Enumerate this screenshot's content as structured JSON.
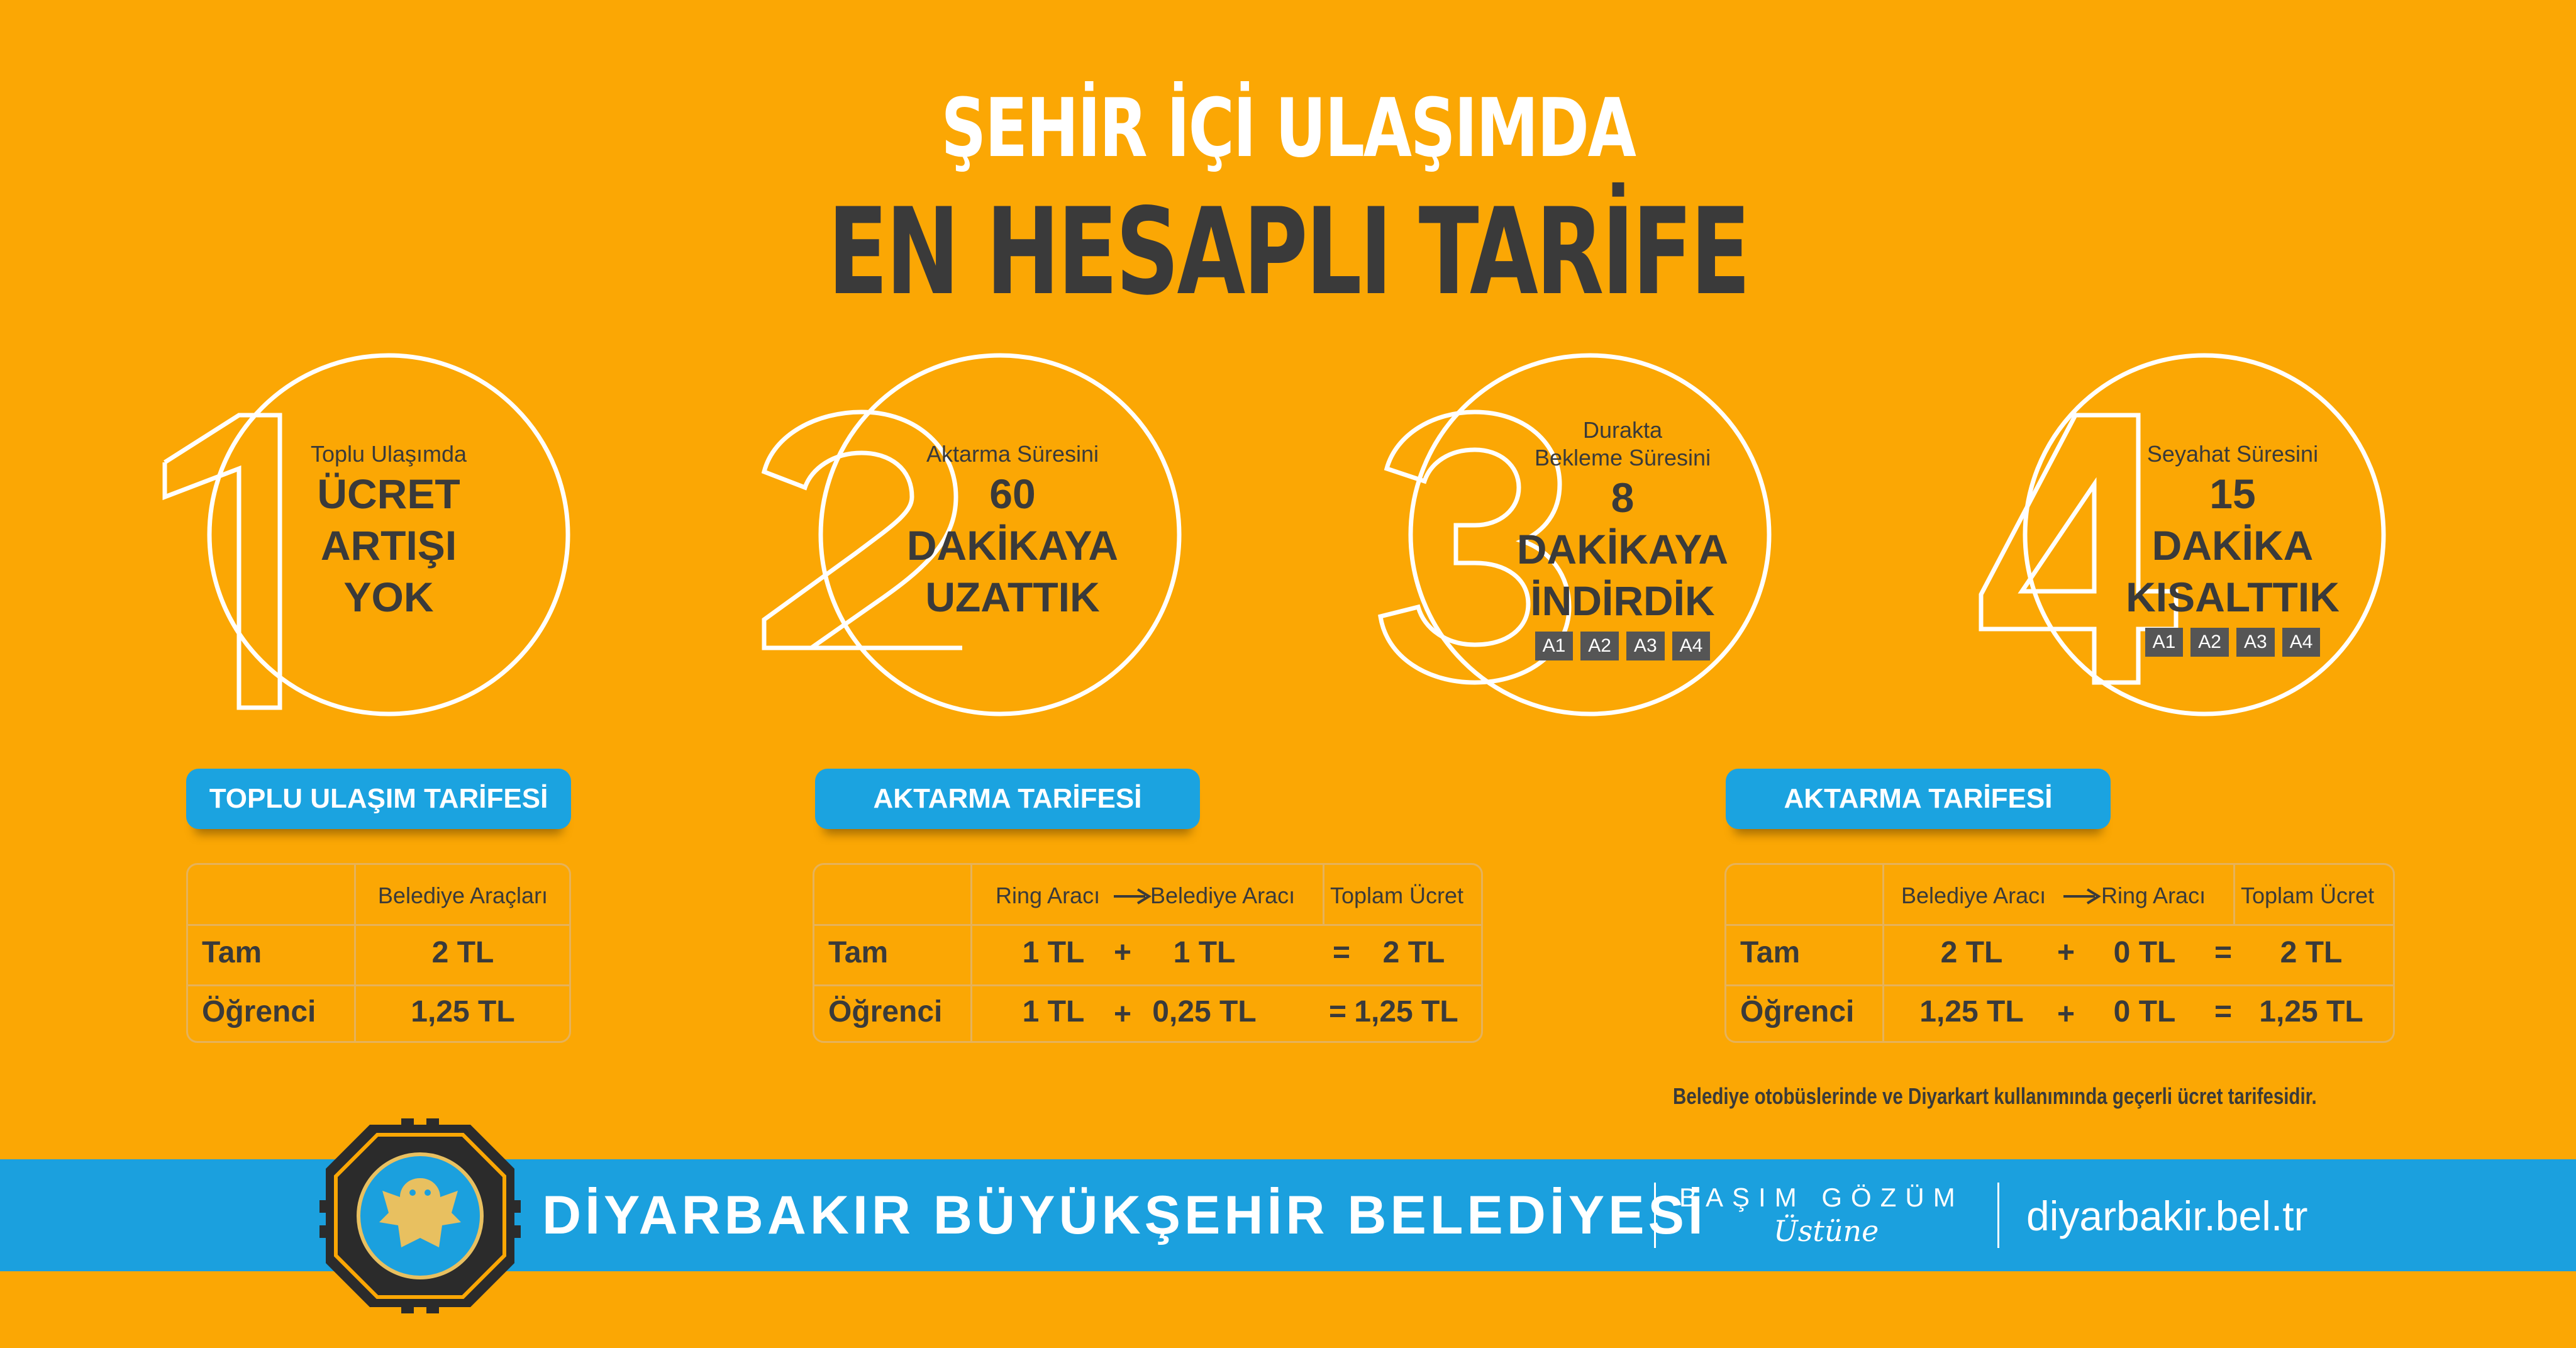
{
  "heading": {
    "line1": "ŞEHİR İÇİ ULAŞIMDA",
    "line2": "EN HESAPLI TARİFE"
  },
  "features": [
    {
      "number": "1",
      "small": "Toplu Ulaşımda",
      "big": [
        "ÜCRET",
        "ARTIŞI",
        "YOK"
      ],
      "badges": []
    },
    {
      "number": "2",
      "small": "Aktarma Süresini",
      "big": [
        "60",
        "DAKİKAYA",
        "UZATTIK"
      ],
      "badges": []
    },
    {
      "number": "3",
      "small": "Durakta\nBekleme Süresini",
      "big": [
        "8",
        "DAKİKAYA",
        "İNDİRDİK"
      ],
      "badges": [
        "A1",
        "A2",
        "A3",
        "A4"
      ]
    },
    {
      "number": "4",
      "small": "Seyahat Süresini",
      "big": [
        "15",
        "DAKİKA",
        "KISALTTIK"
      ],
      "badges": [
        "A1",
        "A2",
        "A3",
        "A4"
      ]
    }
  ],
  "tables": [
    {
      "title": "TOPLU ULAŞIM TARİFESİ",
      "header": "Belediye Araçları",
      "rows": [
        {
          "label": "Tam",
          "value": "2 TL"
        },
        {
          "label": "Öğrenci",
          "value": "1,25 TL"
        }
      ]
    },
    {
      "title": "AKTARMA TARİFESİ",
      "header_from": "Ring Aracı",
      "header_to": "Belediye Aracı",
      "header_total": "Toplam Ücret",
      "rows": [
        {
          "label": "Tam",
          "a": "1 TL",
          "op": "+",
          "b": "1 TL",
          "eq": "=",
          "total": "2 TL"
        },
        {
          "label": "Öğrenci",
          "a": "1 TL",
          "op": "+",
          "b": "0,25 TL",
          "eq": "=",
          "total": "1,25 TL"
        }
      ]
    },
    {
      "title": "AKTARMA TARİFESİ",
      "header_from": "Belediye Aracı",
      "header_to": "Ring Aracı",
      "header_total": "Toplam Ücret",
      "rows": [
        {
          "label": "Tam",
          "a": "2 TL",
          "op": "+",
          "b": "0 TL",
          "eq": "=",
          "total": "2 TL"
        },
        {
          "label": "Öğrenci",
          "a": "1,25 TL",
          "op": "+",
          "b": "0 TL",
          "eq": "=",
          "total": "1,25 TL"
        }
      ]
    }
  ],
  "note": "Belediye otobüslerinde ve Diyarkart kullanımında geçerli ücret tarifesidir.",
  "footer": {
    "organization": "DİYARBAKIR BÜYÜKŞEHİR BELEDİYESİ",
    "slogan_top": "BAŞIM GÖZÜM",
    "slogan_bottom": "Üstüne",
    "website": "diyarbakir.bel.tr"
  },
  "colors": {
    "background": "#fba704",
    "blue": "#1ba3e0",
    "dark": "#3a3a3a",
    "white": "#ffffff"
  },
  "icons": [
    "municipality-emblem-icon",
    "arrow-right-icon"
  ]
}
